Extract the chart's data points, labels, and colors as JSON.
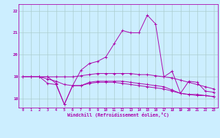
{
  "xlabel": "Windchill (Refroidissement éolien,°C)",
  "bg_color": "#cceeff",
  "grid_color": "#aacccc",
  "line_color": "#aa00aa",
  "hours": [
    0,
    1,
    2,
    3,
    4,
    5,
    6,
    7,
    8,
    9,
    10,
    11,
    12,
    13,
    14,
    15,
    16,
    17,
    18,
    19,
    20,
    21,
    22,
    23
  ],
  "temp": [
    19.0,
    19.0,
    19.0,
    19.0,
    18.7,
    17.75,
    18.6,
    19.3,
    19.6,
    19.7,
    19.9,
    20.5,
    21.1,
    21.0,
    21.0,
    21.8,
    21.4,
    19.0,
    19.25,
    18.25,
    18.8,
    18.75,
    18.35,
    18.3
  ],
  "windchill1": [
    19.0,
    19.0,
    19.0,
    18.7,
    18.65,
    17.75,
    18.6,
    18.6,
    18.75,
    18.8,
    18.8,
    18.8,
    18.8,
    18.75,
    18.7,
    18.65,
    18.6,
    18.55,
    18.4,
    18.25,
    18.2,
    18.2,
    18.15,
    18.1
  ],
  "windchill2": [
    19.0,
    19.0,
    19.0,
    18.9,
    18.8,
    18.65,
    18.6,
    18.6,
    18.7,
    18.75,
    18.75,
    18.75,
    18.7,
    18.65,
    18.6,
    18.55,
    18.5,
    18.45,
    18.35,
    18.25,
    18.2,
    18.15,
    18.15,
    18.1
  ],
  "windchill3": [
    19.0,
    19.0,
    19.0,
    19.0,
    19.0,
    19.0,
    19.0,
    19.05,
    19.1,
    19.15,
    19.15,
    19.15,
    19.15,
    19.15,
    19.1,
    19.1,
    19.05,
    19.0,
    18.95,
    18.85,
    18.75,
    18.65,
    18.55,
    18.45
  ],
  "ylim": [
    17.6,
    22.3
  ],
  "yticks": [
    18,
    19,
    20,
    21,
    22
  ],
  "xticks": [
    0,
    1,
    2,
    3,
    4,
    5,
    6,
    7,
    8,
    9,
    10,
    11,
    12,
    13,
    14,
    15,
    16,
    17,
    18,
    19,
    20,
    21,
    22,
    23
  ]
}
